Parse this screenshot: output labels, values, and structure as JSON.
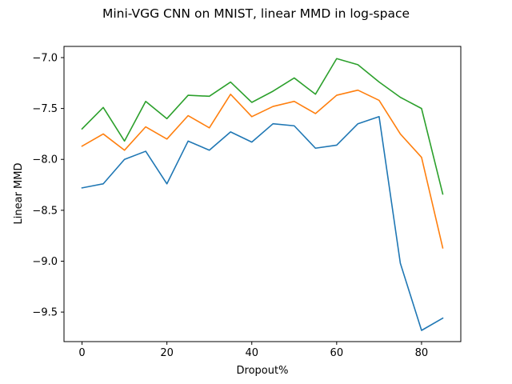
{
  "chart_data": {
    "type": "line",
    "title": "Mini-VGG CNN on MNIST, linear MMD in log-space",
    "xlabel": "Dropout%",
    "ylabel": "Linear MMD",
    "x": [
      0,
      5,
      10,
      15,
      20,
      25,
      30,
      35,
      40,
      45,
      50,
      55,
      60,
      65,
      70,
      75,
      80,
      85
    ],
    "xlim": [
      -4.25,
      89.25
    ],
    "ylim": [
      -9.79,
      -6.89
    ],
    "xticks": [
      0,
      20,
      40,
      60,
      80
    ],
    "xtick_labels": [
      "0",
      "20",
      "40",
      "60",
      "80"
    ],
    "yticks": [
      -9.5,
      -9.0,
      -8.5,
      -8.0,
      -7.5,
      -7.0
    ],
    "ytick_labels": [
      "−9.5",
      "−9.0",
      "−8.5",
      "−8.0",
      "−7.5",
      "−7.0"
    ],
    "grid": false,
    "legend": "none",
    "series": [
      {
        "color": "#1f77b4",
        "values": [
          -8.28,
          -8.24,
          -8.0,
          -7.92,
          -8.24,
          -7.82,
          -7.91,
          -7.73,
          -7.83,
          -7.65,
          -7.67,
          -7.89,
          -7.86,
          -7.65,
          -7.58,
          -9.02,
          -9.68,
          -9.56
        ]
      },
      {
        "color": "#ff7f0e",
        "values": [
          -7.87,
          -7.75,
          -7.91,
          -7.68,
          -7.8,
          -7.57,
          -7.69,
          -7.36,
          -7.58,
          -7.48,
          -7.43,
          -7.55,
          -7.37,
          -7.32,
          -7.42,
          -7.75,
          -7.98,
          -8.87
        ]
      },
      {
        "color": "#2ca02c",
        "values": [
          -7.7,
          -7.49,
          -7.82,
          -7.43,
          -7.6,
          -7.37,
          -7.38,
          -7.24,
          -7.44,
          -7.33,
          -7.2,
          -7.36,
          -7.01,
          -7.07,
          -7.24,
          -7.39,
          -7.5,
          -8.34
        ]
      }
    ]
  }
}
